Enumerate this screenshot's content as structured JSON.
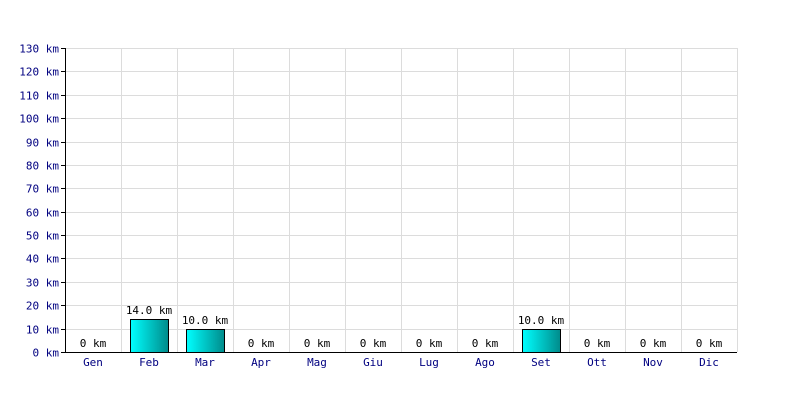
{
  "colors": {
    "bar_light": "#00ffff",
    "bar_dark": "#008b8b",
    "grid": "#dcdcdc",
    "axis_text": "#000080"
  },
  "chart_data": {
    "type": "bar",
    "categories": [
      "Gen",
      "Feb",
      "Mar",
      "Apr",
      "Mag",
      "Giu",
      "Lug",
      "Ago",
      "Set",
      "Ott",
      "Nov",
      "Dic"
    ],
    "values": [
      0,
      14.0,
      10.0,
      0,
      0,
      0,
      0,
      0,
      10.0,
      0,
      0,
      0
    ],
    "value_labels": [
      "0 km",
      "14.0 km",
      "10.0 km",
      "0 km",
      "0 km",
      "0 km",
      "0 km",
      "0 km",
      "10.0 km",
      "0 km",
      "0 km",
      "0 km"
    ],
    "y_ticks": [
      0,
      10,
      20,
      30,
      40,
      50,
      60,
      70,
      80,
      90,
      100,
      110,
      120,
      130
    ],
    "y_tick_labels": [
      "0 km",
      "10 km",
      "20 km",
      "30 km",
      "40 km",
      "50 km",
      "60 km",
      "70 km",
      "80 km",
      "90 km",
      "100 km",
      "110 km",
      "120 km",
      "130 km"
    ],
    "ylim": [
      0,
      130
    ],
    "title": "",
    "xlabel": "",
    "ylabel": "",
    "grid": true,
    "legend": false
  }
}
